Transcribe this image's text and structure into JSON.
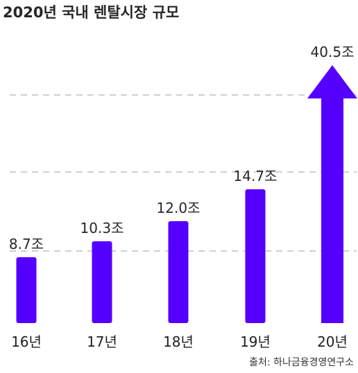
{
  "chart_data": {
    "type": "bar",
    "title": "2020년 국내 렌탈시장 규모",
    "categories": [
      "16년",
      "17년",
      "18년",
      "19년",
      "20년"
    ],
    "values": [
      8.7,
      10.3,
      12.0,
      14.7,
      40.5
    ],
    "value_labels": [
      "8.7조",
      "10.3조",
      "12.0조",
      "14.7조",
      "40.5조"
    ],
    "last_bar_style": "arrow",
    "grid": "dashed horizontal",
    "source": "출처: 하나금융경영연구소",
    "colors": {
      "bar": "#5500ff",
      "grid": "#cfcfcf",
      "text": "#262626"
    }
  }
}
